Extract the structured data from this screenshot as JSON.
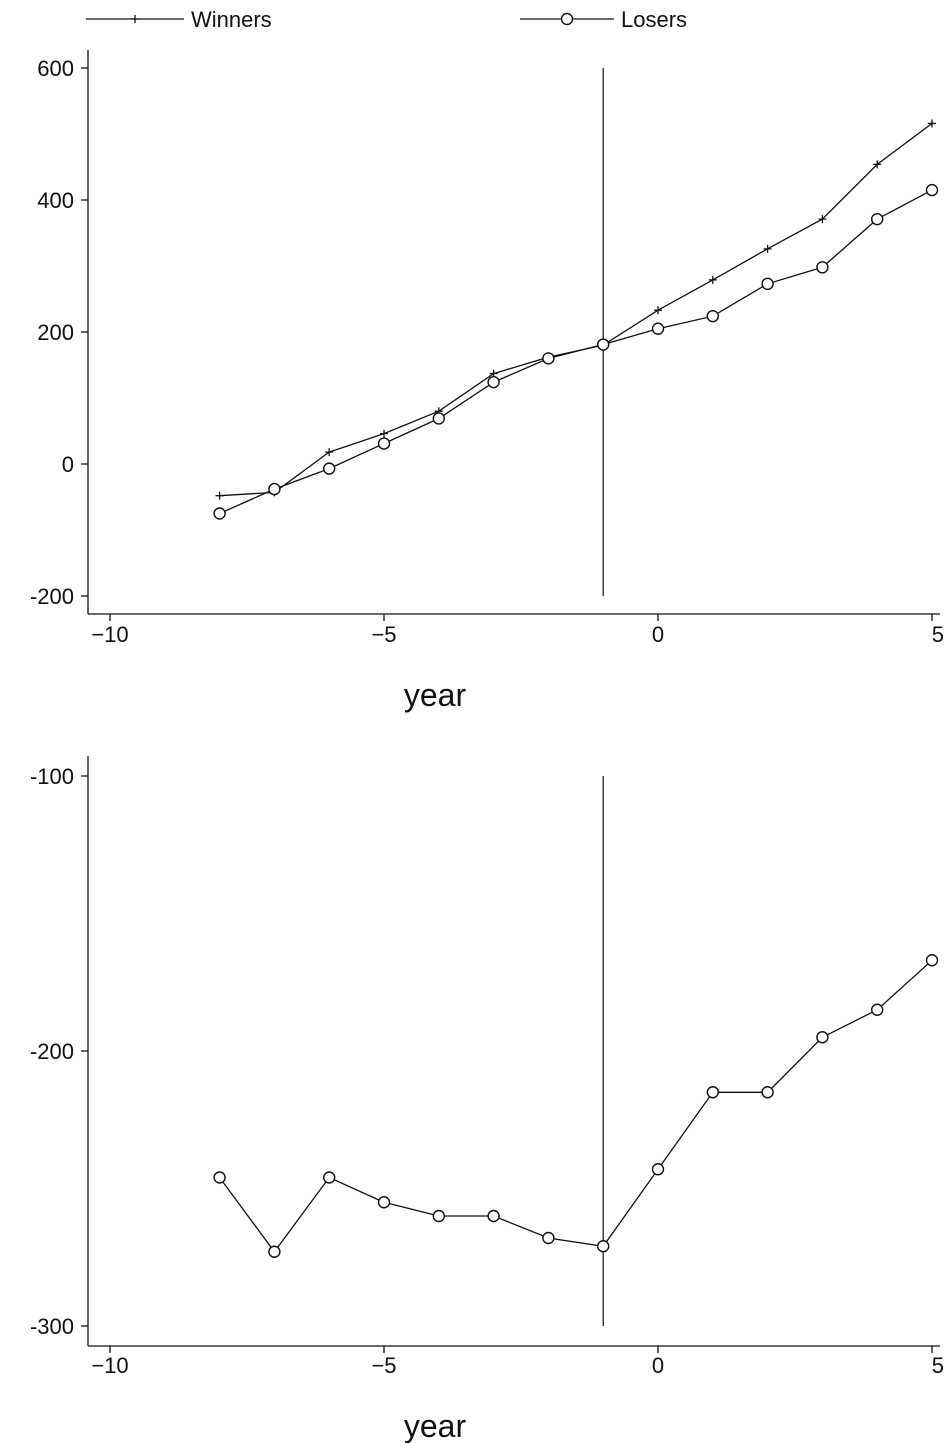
{
  "legend": {
    "entries": [
      {
        "label": "Winners",
        "marker": "plus"
      },
      {
        "label": "Losers",
        "marker": "circle"
      }
    ]
  },
  "chart_data": [
    {
      "type": "line",
      "xlabel": "year",
      "ylabel": "",
      "xlim": [
        -10,
        5
      ],
      "ylim": [
        -200,
        600
      ],
      "xticks": [
        -10,
        -5,
        0,
        5
      ],
      "yticks": [
        -200,
        0,
        200,
        400,
        600
      ],
      "reference_line_x": -1,
      "grid": false,
      "legend_position": "top",
      "x": [
        -8,
        -7,
        -6,
        -5,
        -4,
        -3,
        -2,
        -1,
        0,
        1,
        2,
        3,
        4,
        5
      ],
      "series": [
        {
          "name": "Winners",
          "marker": "plus",
          "values": [
            -48,
            -43,
            18,
            46,
            80,
            137,
            162,
            180,
            233,
            279,
            326,
            371,
            454,
            516
          ]
        },
        {
          "name": "Losers",
          "marker": "circle",
          "values": [
            -75,
            -38,
            -7,
            31,
            69,
            124,
            160,
            181,
            205,
            224,
            273,
            298,
            371,
            415
          ]
        }
      ]
    },
    {
      "type": "line",
      "xlabel": "year",
      "ylabel": "",
      "xlim": [
        -10,
        5
      ],
      "ylim": [
        -300,
        -100
      ],
      "xticks": [
        -10,
        -5,
        0,
        5
      ],
      "yticks": [
        -300,
        -200,
        -100
      ],
      "reference_line_x": -1,
      "grid": false,
      "x": [
        -8,
        -7,
        -6,
        -5,
        -4,
        -3,
        -2,
        -1,
        0,
        1,
        2,
        3,
        4,
        5
      ],
      "series": [
        {
          "marker": "circle",
          "values": [
            -246,
            -273,
            -246,
            -255,
            -260,
            -260,
            -268,
            -271,
            -243,
            -215,
            -215,
            -195,
            -185,
            -167
          ]
        }
      ]
    }
  ]
}
